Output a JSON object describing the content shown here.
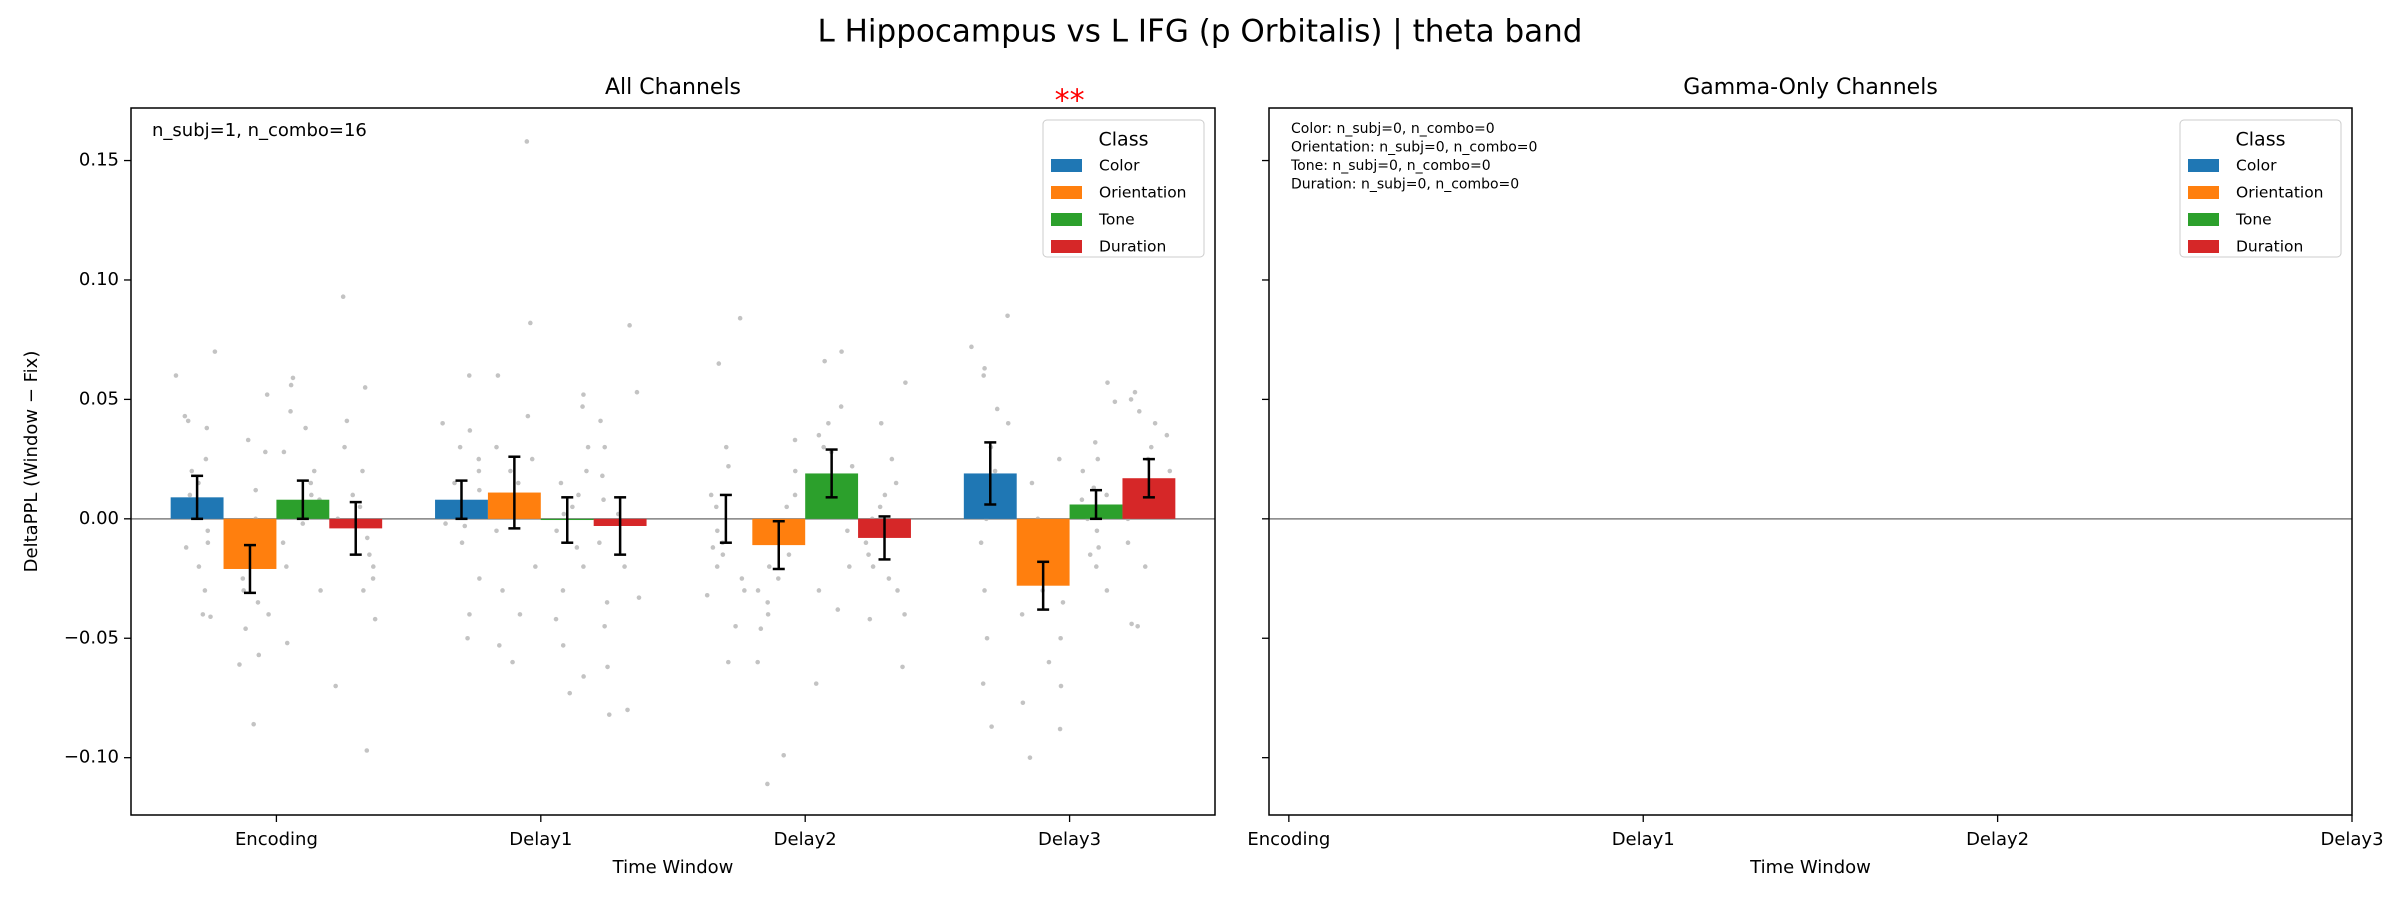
{
  "title": "L Hippocampus vs L IFG (p Orbitalis)  |  theta band",
  "chart_data": [
    {
      "type": "bar",
      "title": "All Channels",
      "xlabel": "Time Window",
      "ylabel": "DeltaPPL (Window − Fix)",
      "categories": [
        "Encoding",
        "Delay1",
        "Delay2",
        "Delay3"
      ],
      "xlim": [
        -0.55,
        3.55
      ],
      "ylim": [
        -0.124,
        0.172
      ],
      "yticks": [
        {
          "value": -0.1,
          "label": "−0.10"
        },
        {
          "value": -0.05,
          "label": "−0.05"
        },
        {
          "value": 0,
          "label": "0.00"
        },
        {
          "value": 0.05,
          "label": "0.05"
        },
        {
          "value": 0.1,
          "label": "0.10"
        },
        {
          "value": 0.15,
          "label": "0.15"
        }
      ],
      "show_ytick_labels": true,
      "zero_line": true,
      "legend": {
        "title": "Class",
        "corner": "upper right"
      },
      "annotation": "n_subj=1, n_combo=16",
      "significance": [
        {
          "label": "**",
          "category": "Delay3",
          "color": "#ff0000"
        }
      ],
      "series": [
        {
          "name": "Color",
          "color": "#1f77b4",
          "values": [
            0.009,
            0.008,
            0.0,
            0.019
          ],
          "errors": [
            0.009,
            0.008,
            0.01,
            0.013
          ],
          "points": [
            [
              0.06,
              0.07,
              0.041,
              0.043,
              0.038,
              0.015,
              0.01,
              -0.005,
              -0.01,
              -0.02,
              -0.03,
              -0.04,
              -0.041,
              -0.012,
              0.02,
              0.025
            ],
            [
              0.037,
              0.04,
              0.06,
              0.03,
              0.012,
              0.005,
              -0.002,
              -0.01,
              -0.025,
              -0.04,
              -0.05,
              -0.003,
              0.02,
              0.025,
              0.002,
              0.015
            ],
            [
              0.084,
              0.065,
              0.01,
              -0.005,
              -0.015,
              -0.02,
              -0.03,
              -0.06,
              -0.045,
              -0.025,
              -0.032,
              0.005,
              0.022,
              0.03,
              -0.01,
              -0.012
            ],
            [
              0.085,
              0.072,
              0.063,
              0.06,
              0.046,
              0.04,
              0.03,
              0.01,
              0.0,
              -0.01,
              -0.03,
              -0.05,
              -0.069,
              -0.087,
              0.02,
              0.015
            ]
          ]
        },
        {
          "name": "Orientation",
          "color": "#ff7f0e",
          "values": [
            -0.021,
            0.011,
            -0.011,
            -0.028
          ],
          "errors": [
            0.01,
            0.015,
            0.01,
            0.01
          ],
          "points": [
            [
              0.052,
              0.033,
              0.028,
              0.012,
              0.0,
              -0.01,
              -0.02,
              -0.035,
              -0.04,
              -0.046,
              -0.057,
              -0.061,
              -0.086,
              -0.03,
              -0.025,
              -0.015
            ],
            [
              0.158,
              0.082,
              0.06,
              0.043,
              0.03,
              0.02,
              0.01,
              -0.005,
              -0.02,
              -0.03,
              -0.04,
              -0.053,
              -0.06,
              0.015,
              0.005,
              0.025
            ],
            [
              0.033,
              0.02,
              0.01,
              -0.002,
              -0.01,
              -0.02,
              -0.03,
              -0.04,
              -0.046,
              -0.06,
              -0.099,
              -0.111,
              -0.015,
              -0.025,
              0.005,
              -0.035
            ],
            [
              0.025,
              0.015,
              0.0,
              -0.01,
              -0.02,
              -0.03,
              -0.04,
              -0.05,
              -0.06,
              -0.07,
              -0.077,
              -0.088,
              -0.1,
              -0.035,
              -0.025,
              -0.015
            ]
          ]
        },
        {
          "name": "Tone",
          "color": "#2ca02c",
          "values": [
            0.008,
            -0.0005,
            0.019,
            0.006
          ],
          "errors": [
            0.008,
            0.0095,
            0.01,
            0.006
          ],
          "points": [
            [
              0.059,
              0.056,
              0.045,
              0.038,
              0.028,
              0.02,
              0.01,
              0.005,
              -0.002,
              -0.01,
              -0.02,
              -0.03,
              -0.052,
              0.015,
              0.008,
              0.001
            ],
            [
              0.052,
              0.047,
              0.03,
              0.02,
              0.01,
              0.002,
              -0.005,
              -0.012,
              -0.02,
              -0.03,
              -0.042,
              -0.053,
              -0.066,
              -0.073,
              0.015,
              0.005
            ],
            [
              0.07,
              0.066,
              0.047,
              0.04,
              0.035,
              0.03,
              0.022,
              0.015,
              0.005,
              -0.005,
              -0.02,
              -0.03,
              -0.038,
              -0.069,
              0.028,
              0.01
            ],
            [
              0.057,
              0.049,
              0.032,
              0.02,
              0.013,
              0.008,
              0.002,
              -0.005,
              -0.012,
              -0.02,
              -0.03,
              -0.015,
              0.01,
              0.005,
              0.0,
              0.025
            ]
          ]
        },
        {
          "name": "Duration",
          "color": "#d62728",
          "values": [
            -0.004,
            -0.003,
            -0.008,
            0.017
          ],
          "errors": [
            0.011,
            0.012,
            0.009,
            0.008
          ],
          "points": [
            [
              0.093,
              0.055,
              0.041,
              0.03,
              0.02,
              0.01,
              0.0,
              -0.008,
              -0.015,
              -0.02,
              -0.025,
              -0.03,
              -0.042,
              -0.07,
              -0.097,
              0.005
            ],
            [
              0.081,
              0.053,
              0.041,
              0.03,
              0.018,
              0.008,
              -0.002,
              -0.01,
              -0.02,
              -0.033,
              -0.035,
              -0.045,
              -0.062,
              -0.08,
              -0.082,
              0.002
            ],
            [
              0.057,
              0.04,
              0.025,
              0.015,
              0.005,
              -0.005,
              -0.01,
              -0.02,
              -0.03,
              -0.04,
              -0.042,
              -0.062,
              0.01,
              -0.015,
              0.0,
              -0.025
            ],
            [
              0.053,
              0.05,
              0.045,
              0.04,
              0.03,
              0.025,
              0.02,
              0.015,
              0.01,
              0.005,
              0.0,
              -0.01,
              -0.02,
              -0.044,
              -0.045,
              0.035
            ]
          ]
        }
      ]
    },
    {
      "type": "bar",
      "title": "Gamma-Only Channels",
      "xlabel": "Time Window",
      "xlim": [
        -0.056,
        3
      ],
      "xticks": [
        {
          "value": 0,
          "label": "Encoding"
        },
        {
          "value": 1,
          "label": "Delay1"
        },
        {
          "value": 2,
          "label": "Delay2"
        },
        {
          "value": 3,
          "label": "Delay3"
        }
      ],
      "ylim": [
        -0.124,
        0.172
      ],
      "yticks": [
        {
          "value": -0.1,
          "label": "−0.10"
        },
        {
          "value": -0.05,
          "label": "−0.05"
        },
        {
          "value": 0,
          "label": "0.00"
        },
        {
          "value": 0.05,
          "label": "0.05"
        },
        {
          "value": 0.1,
          "label": "0.10"
        },
        {
          "value": 0.15,
          "label": "0.15"
        }
      ],
      "show_ytick_labels": false,
      "zero_line": true,
      "legend": {
        "title": "Class",
        "corner": "upper right"
      },
      "notes": [
        "Color: n_subj=0, n_combo=0",
        "Orientation: n_subj=0, n_combo=0",
        "Tone: n_subj=0, n_combo=0",
        "Duration: n_subj=0, n_combo=0"
      ],
      "series": [
        {
          "name": "Color",
          "color": "#1f77b4"
        },
        {
          "name": "Orientation",
          "color": "#ff7f0e"
        },
        {
          "name": "Tone",
          "color": "#2ca02c"
        },
        {
          "name": "Duration",
          "color": "#d62728"
        }
      ]
    }
  ]
}
